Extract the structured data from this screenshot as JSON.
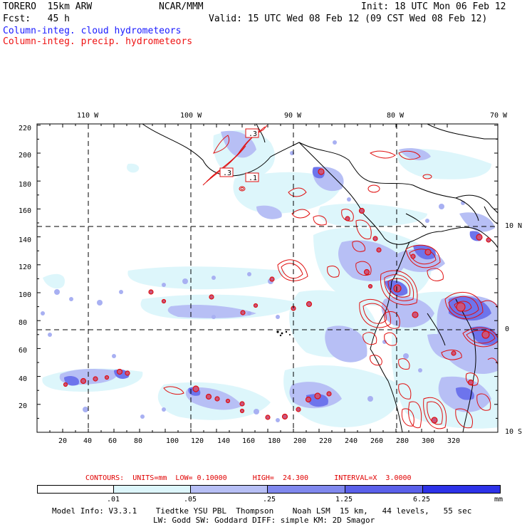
{
  "header": {
    "model": "TORERO  15km ARW",
    "center": "NCAR/MMM",
    "init": "Init: 18 UTC Mon 06 Feb 12",
    "fcst": "Fcst:   45 h",
    "valid": "Valid: 15 UTC Wed 08 Feb 12 (09 CST Wed 08 Feb 12)",
    "legend_cloud": "Column-integ. cloud hydrometeors",
    "legend_precip": "Column-integ. precip. hydrometeors"
  },
  "map": {
    "lon_labels": [
      "110 W",
      "100 W",
      "90 W",
      "80 W",
      "70 W"
    ],
    "lat_labels": [
      "10 N",
      "0",
      "10 S"
    ],
    "y_ticks": [
      "220",
      "200",
      "180",
      "160",
      "140",
      "120",
      "100",
      "80",
      "60",
      "40",
      "20"
    ],
    "x_ticks": [
      "20",
      "40",
      "60",
      "80",
      "100",
      "120",
      "140",
      "160",
      "180",
      "200",
      "220",
      "240",
      "260",
      "280",
      "300",
      "320"
    ],
    "contour_labels": [
      ".3",
      ".3",
      ".1"
    ],
    "colors": {
      "shade1": "#ddf6fb",
      "shade2": "#b7bff5",
      "shade3": "#7b82ee",
      "shade4": "#4d55e8",
      "shade5": "#2d32e8",
      "precip": "#e01010",
      "coast": "#000000"
    }
  },
  "contour_info": {
    "label": "CONTOURS:  UNITS=mm  LOW= 0.10000      HIGH=  24.300      INTERVAL=X  3.0000"
  },
  "colorbar": {
    "labels": [
      ".01",
      ".05",
      ".25",
      "1.25",
      "6.25"
    ],
    "units": "mm",
    "colors": [
      "#ffffff",
      "#ddf6fb",
      "#b7bff5",
      "#8088ee",
      "#5a60ea",
      "#2d32e8"
    ]
  },
  "model_info": {
    "line1": "Model Info: V3.3.1    Tiedtke YSU PBL  Thompson    Noah LSM  15 km,   44 levels,   55 sec",
    "line2": "LW: Godd SW: Goddard DIFF: simple KM: 2D Smagor"
  }
}
